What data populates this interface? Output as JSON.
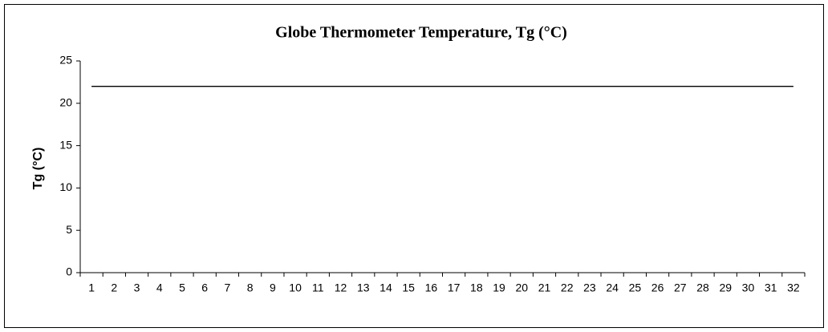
{
  "chart_data": {
    "type": "line",
    "title": "Globe Thermometer Temperature, Tg (°C)",
    "y_label": "Tg (°C)",
    "categories": [
      "1",
      "2",
      "3",
      "4",
      "5",
      "6",
      "7",
      "8",
      "9",
      "10",
      "11",
      "12",
      "13",
      "14",
      "15",
      "16",
      "17",
      "18",
      "19",
      "20",
      "21",
      "22",
      "23",
      "24",
      "25",
      "26",
      "27",
      "28",
      "29",
      "30",
      "31",
      "32"
    ],
    "values": [
      22,
      22,
      22,
      22,
      22,
      22,
      22,
      22,
      22,
      22,
      22,
      22,
      22,
      22,
      22,
      22,
      22,
      22,
      22,
      22,
      22,
      22,
      22,
      22,
      22,
      22,
      22,
      22,
      22,
      22,
      22,
      22
    ],
    "color": "#000000",
    "ylim": [
      0,
      25
    ],
    "yticks": [
      0,
      5,
      10,
      15,
      20,
      25
    ],
    "grid": false
  }
}
